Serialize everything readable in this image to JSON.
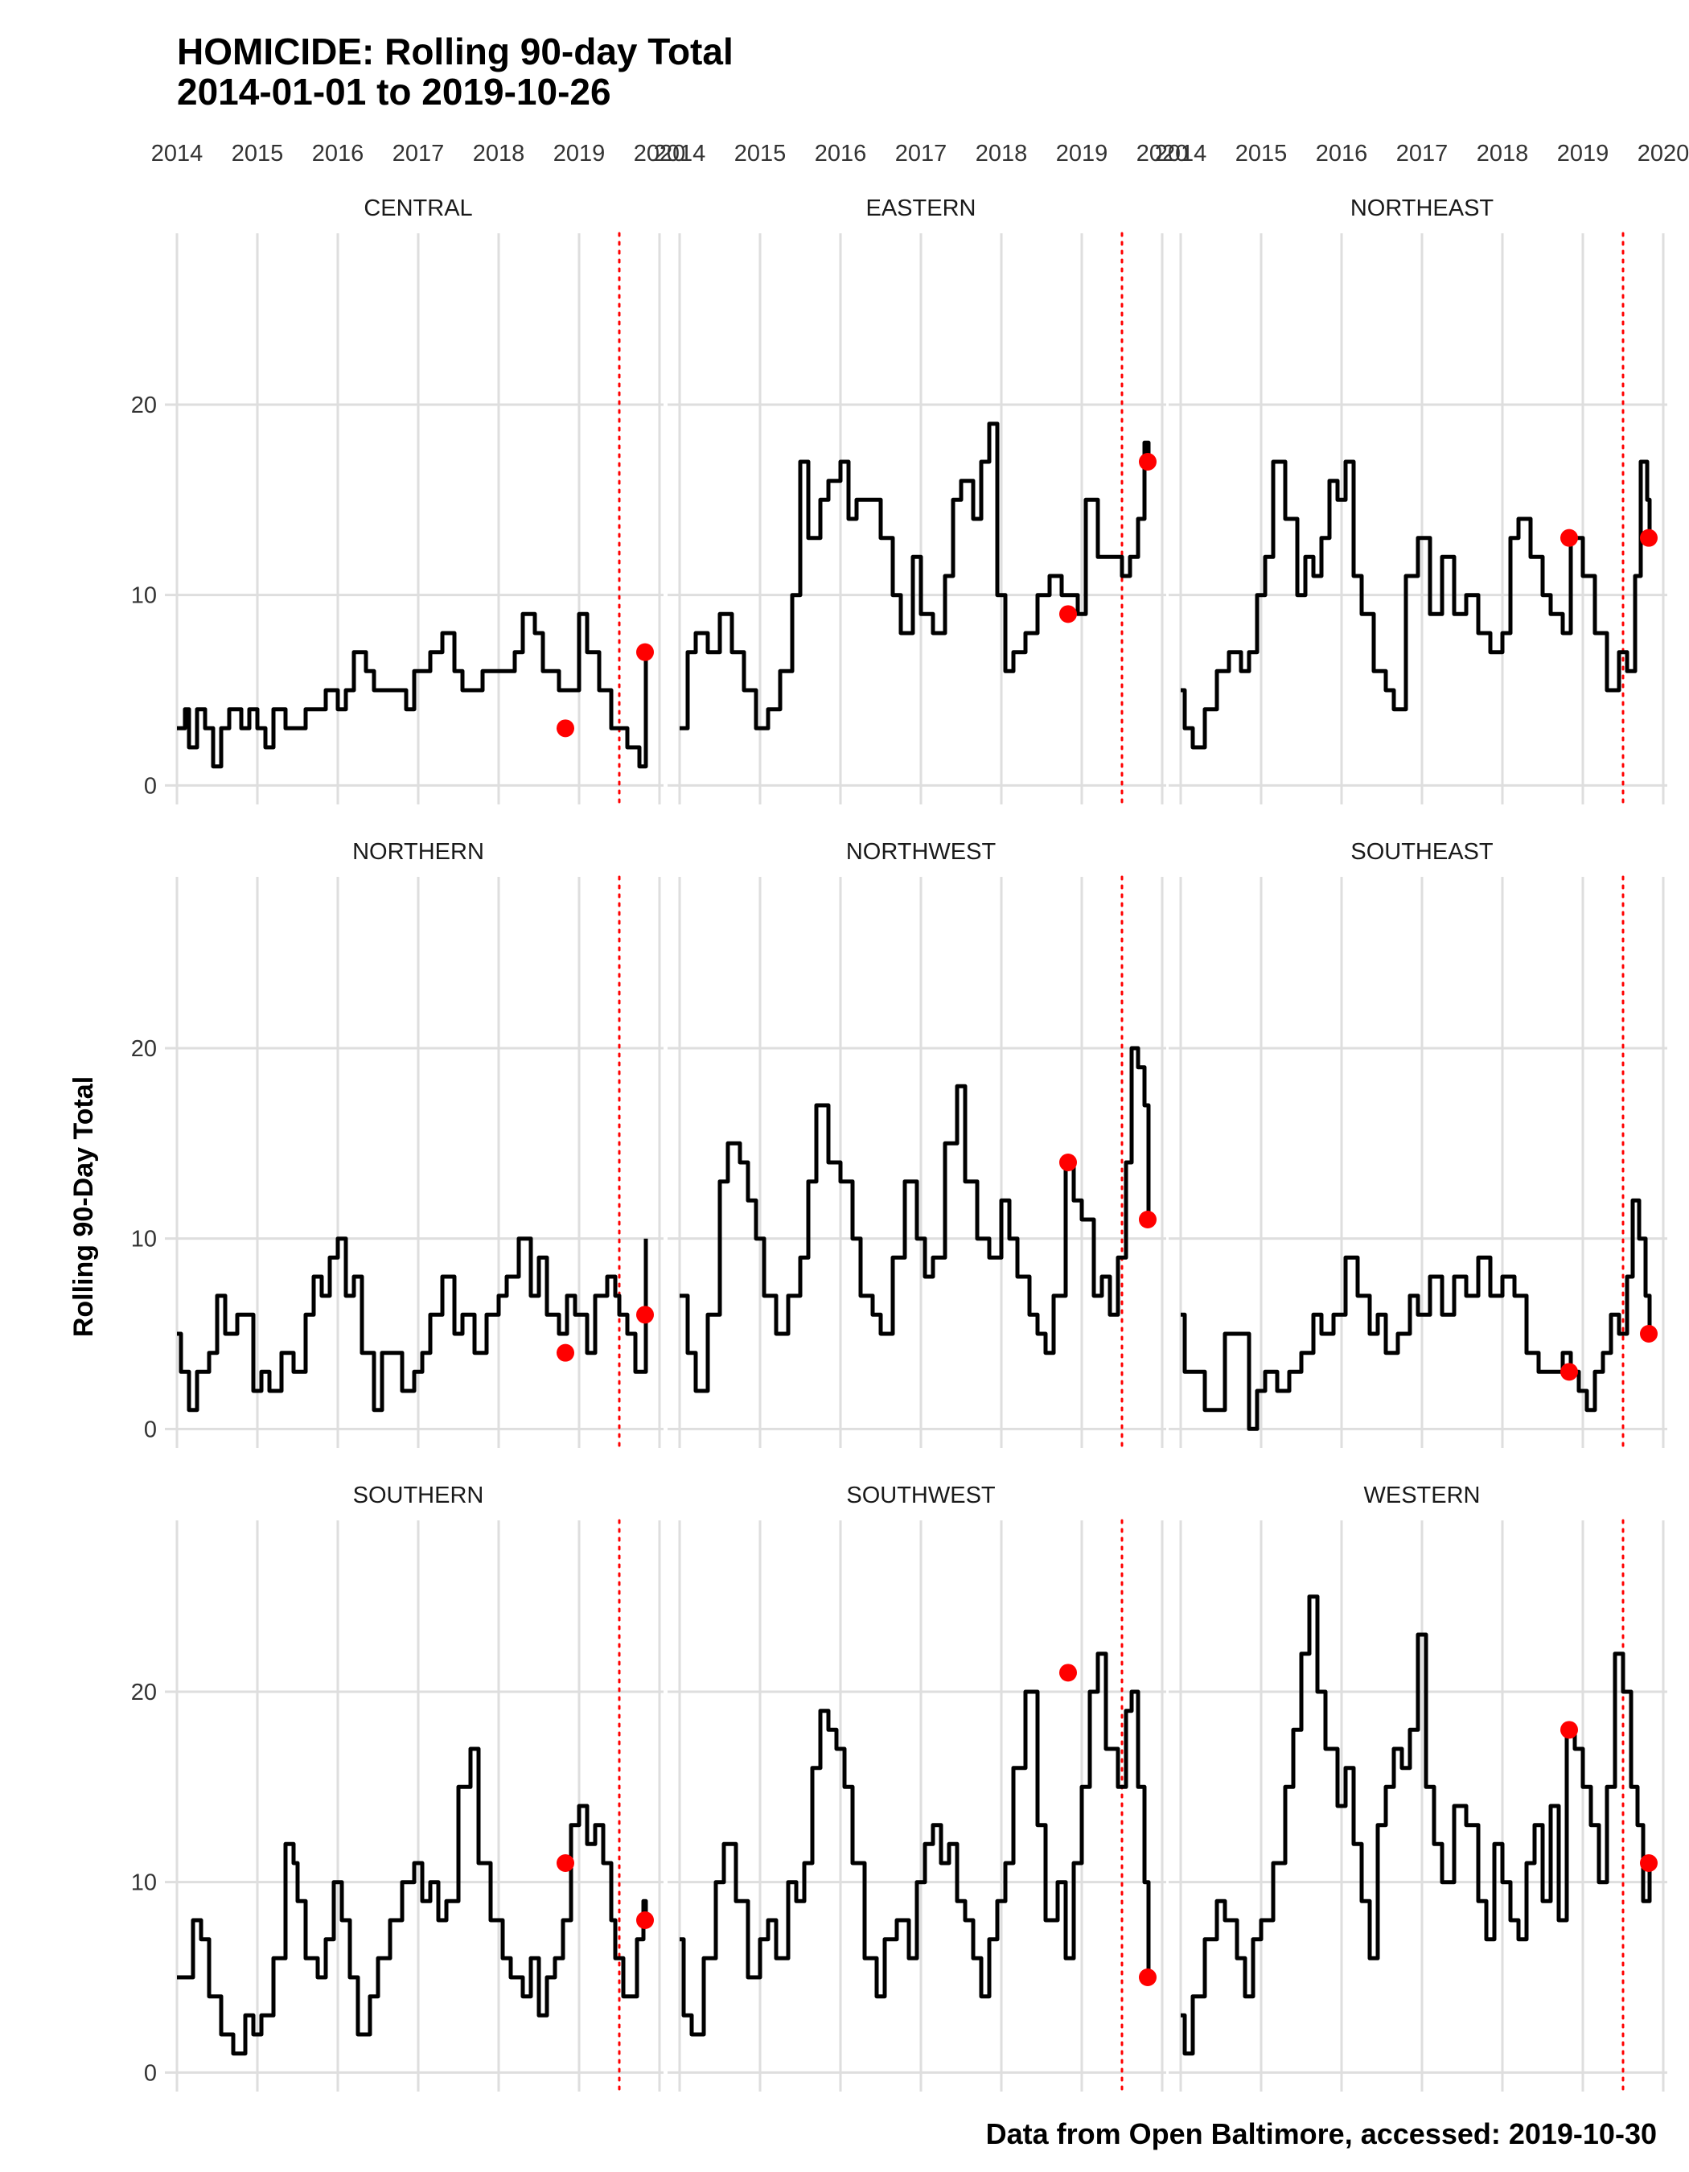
{
  "chart_data": {
    "type": "line",
    "title_line1": "HOMICIDE: Rolling 90-day Total",
    "title_line2": "2014-01-01 to 2019-10-26",
    "ylabel": "Rolling 90-Day Total",
    "caption": "Data from Open Baltimore, accessed: 2019-10-30",
    "x_ticks": [
      "2014",
      "2015",
      "2016",
      "2017",
      "2018",
      "2019",
      "2020"
    ],
    "y_ticks": [
      0,
      10,
      20
    ],
    "xlim": [
      2013.95,
      2020.05
    ],
    "ylim": [
      -1,
      29
    ],
    "grid": true,
    "reference_line": {
      "x": 2019.5,
      "color": "#ff0000",
      "style": "dotted"
    },
    "marker_color": "#ff0000",
    "line_color": "#000000",
    "panels": [
      {
        "name": "CENTRAL",
        "x": [
          2014.0,
          2014.1,
          2014.15,
          2014.25,
          2014.35,
          2014.45,
          2014.55,
          2014.65,
          2014.8,
          2014.9,
          2015.0,
          2015.1,
          2015.2,
          2015.35,
          2015.5,
          2015.6,
          2015.75,
          2015.85,
          2016.0,
          2016.1,
          2016.2,
          2016.35,
          2016.45,
          2016.6,
          2016.75,
          2016.85,
          2016.95,
          2017.05,
          2017.15,
          2017.3,
          2017.45,
          2017.55,
          2017.7,
          2017.8,
          2017.95,
          2018.1,
          2018.2,
          2018.3,
          2018.45,
          2018.55,
          2018.65,
          2018.75,
          2018.85,
          2019.0,
          2019.1,
          2019.25,
          2019.4,
          2019.5,
          2019.6,
          2019.75,
          2019.83
        ],
        "y": [
          3,
          4,
          2,
          4,
          3,
          1,
          3,
          4,
          3,
          4,
          3,
          2,
          4,
          3,
          3,
          4,
          4,
          5,
          4,
          5,
          7,
          6,
          5,
          5,
          5,
          4,
          6,
          6,
          7,
          8,
          6,
          5,
          5,
          6,
          6,
          6,
          7,
          9,
          8,
          6,
          6,
          5,
          5,
          9,
          7,
          5,
          3,
          3,
          2,
          1,
          7
        ],
        "marker1": {
          "x": 2018.83,
          "y": 3
        },
        "marker2": {
          "x": 2019.82,
          "y": 7
        }
      },
      {
        "name": "EASTERN",
        "x": [
          2014.0,
          2014.1,
          2014.2,
          2014.35,
          2014.5,
          2014.65,
          2014.8,
          2014.95,
          2015.1,
          2015.25,
          2015.4,
          2015.5,
          2015.6,
          2015.75,
          2015.85,
          2016.0,
          2016.1,
          2016.2,
          2016.35,
          2016.5,
          2016.65,
          2016.75,
          2016.9,
          2017.0,
          2017.15,
          2017.3,
          2017.4,
          2017.5,
          2017.65,
          2017.75,
          2017.85,
          2017.95,
          2018.05,
          2018.15,
          2018.3,
          2018.45,
          2018.6,
          2018.75,
          2018.85,
          2018.95,
          2019.05,
          2019.2,
          2019.35,
          2019.5,
          2019.6,
          2019.7,
          2019.78,
          2019.83
        ],
        "y": [
          3,
          7,
          8,
          7,
          9,
          7,
          5,
          3,
          4,
          6,
          10,
          17,
          13,
          15,
          16,
          17,
          14,
          15,
          15,
          13,
          10,
          8,
          12,
          9,
          8,
          11,
          15,
          16,
          14,
          17,
          19,
          10,
          6,
          7,
          8,
          10,
          11,
          10,
          10,
          9,
          15,
          12,
          12,
          11,
          12,
          14,
          18,
          17
        ],
        "marker1": {
          "x": 2018.83,
          "y": 9
        },
        "marker2": {
          "x": 2019.82,
          "y": 17
        }
      },
      {
        "name": "NORTHEAST",
        "x": [
          2014.0,
          2014.05,
          2014.15,
          2014.3,
          2014.45,
          2014.6,
          2014.75,
          2014.85,
          2014.95,
          2015.05,
          2015.15,
          2015.3,
          2015.45,
          2015.55,
          2015.65,
          2015.75,
          2015.85,
          2015.95,
          2016.05,
          2016.15,
          2016.25,
          2016.4,
          2016.55,
          2016.65,
          2016.8,
          2016.95,
          2017.1,
          2017.25,
          2017.4,
          2017.55,
          2017.7,
          2017.85,
          2018.0,
          2018.1,
          2018.2,
          2018.35,
          2018.5,
          2018.6,
          2018.75,
          2018.85,
          2019.0,
          2019.15,
          2019.3,
          2019.45,
          2019.55,
          2019.65,
          2019.72,
          2019.8,
          2019.83
        ],
        "y": [
          5,
          3,
          2,
          4,
          6,
          7,
          6,
          7,
          10,
          12,
          17,
          14,
          10,
          12,
          11,
          13,
          16,
          15,
          17,
          11,
          9,
          6,
          5,
          4,
          11,
          13,
          9,
          12,
          9,
          10,
          8,
          7,
          8,
          13,
          14,
          12,
          10,
          9,
          8,
          13,
          11,
          8,
          5,
          7,
          6,
          11,
          17,
          15,
          13
        ],
        "marker1": {
          "x": 2018.83,
          "y": 13
        },
        "marker2": {
          "x": 2019.82,
          "y": 13
        }
      },
      {
        "name": "NORTHERN",
        "x": [
          2014.0,
          2014.05,
          2014.15,
          2014.25,
          2014.4,
          2014.5,
          2014.6,
          2014.75,
          2014.95,
          2015.05,
          2015.15,
          2015.3,
          2015.45,
          2015.6,
          2015.7,
          2015.8,
          2015.9,
          2016.0,
          2016.1,
          2016.2,
          2016.3,
          2016.45,
          2016.55,
          2016.65,
          2016.8,
          2016.95,
          2017.05,
          2017.15,
          2017.3,
          2017.45,
          2017.55,
          2017.7,
          2017.85,
          2018.0,
          2018.1,
          2018.25,
          2018.4,
          2018.5,
          2018.6,
          2018.75,
          2018.85,
          2018.95,
          2019.1,
          2019.2,
          2019.35,
          2019.45,
          2019.5,
          2019.6,
          2019.7,
          2019.8,
          2019.83
        ],
        "y": [
          5,
          3,
          1,
          3,
          4,
          7,
          5,
          6,
          2,
          3,
          2,
          4,
          3,
          6,
          8,
          7,
          9,
          10,
          7,
          8,
          4,
          1,
          4,
          4,
          2,
          3,
          4,
          6,
          8,
          5,
          6,
          4,
          6,
          7,
          8,
          10,
          7,
          9,
          6,
          5,
          7,
          6,
          4,
          7,
          8,
          7,
          6,
          5,
          3,
          3,
          10
        ],
        "marker1": {
          "x": 2018.83,
          "y": 4
        },
        "marker2": {
          "x": 2019.82,
          "y": 6
        }
      },
      {
        "name": "NORTHWEST",
        "x": [
          2014.0,
          2014.1,
          2014.2,
          2014.35,
          2014.5,
          2014.6,
          2014.75,
          2014.85,
          2014.95,
          2015.05,
          2015.2,
          2015.35,
          2015.5,
          2015.6,
          2015.7,
          2015.85,
          2016.0,
          2016.15,
          2016.25,
          2016.4,
          2016.5,
          2016.65,
          2016.8,
          2016.95,
          2017.05,
          2017.15,
          2017.3,
          2017.45,
          2017.55,
          2017.7,
          2017.85,
          2018.0,
          2018.1,
          2018.2,
          2018.35,
          2018.45,
          2018.55,
          2018.65,
          2018.8,
          2018.9,
          2019.0,
          2019.15,
          2019.25,
          2019.35,
          2019.45,
          2019.55,
          2019.62,
          2019.7,
          2019.78,
          2019.83
        ],
        "y": [
          7,
          4,
          2,
          6,
          13,
          15,
          14,
          12,
          10,
          7,
          5,
          7,
          9,
          13,
          17,
          14,
          13,
          10,
          7,
          6,
          5,
          9,
          13,
          10,
          8,
          9,
          15,
          18,
          13,
          10,
          9,
          12,
          10,
          8,
          6,
          5,
          4,
          7,
          14,
          12,
          11,
          7,
          8,
          6,
          9,
          14,
          20,
          19,
          17,
          11
        ],
        "marker1": {
          "x": 2018.83,
          "y": 14
        },
        "marker2": {
          "x": 2019.82,
          "y": 11
        }
      },
      {
        "name": "SOUTHEAST",
        "x": [
          2014.0,
          2014.05,
          2014.15,
          2014.3,
          2014.45,
          2014.55,
          2014.7,
          2014.85,
          2014.95,
          2015.05,
          2015.2,
          2015.35,
          2015.5,
          2015.65,
          2015.75,
          2015.9,
          2016.05,
          2016.2,
          2016.35,
          2016.45,
          2016.55,
          2016.7,
          2016.85,
          2016.95,
          2017.1,
          2017.25,
          2017.4,
          2017.55,
          2017.7,
          2017.85,
          2018.0,
          2018.15,
          2018.3,
          2018.45,
          2018.6,
          2018.75,
          2018.85,
          2018.95,
          2019.05,
          2019.15,
          2019.25,
          2019.35,
          2019.45,
          2019.55,
          2019.62,
          2019.7,
          2019.78,
          2019.83
        ],
        "y": [
          6,
          3,
          3,
          1,
          1,
          5,
          5,
          0,
          2,
          3,
          2,
          3,
          4,
          6,
          5,
          6,
          9,
          7,
          5,
          6,
          4,
          5,
          7,
          6,
          8,
          6,
          8,
          7,
          9,
          7,
          8,
          7,
          4,
          3,
          3,
          4,
          3,
          2,
          1,
          3,
          4,
          6,
          5,
          8,
          12,
          10,
          7,
          5
        ],
        "marker1": {
          "x": 2018.83,
          "y": 3
        },
        "marker2": {
          "x": 2019.82,
          "y": 5
        }
      },
      {
        "name": "SOUTHERN",
        "x": [
          2014.0,
          2014.1,
          2014.2,
          2014.3,
          2014.4,
          2014.55,
          2014.7,
          2014.85,
          2014.95,
          2015.05,
          2015.2,
          2015.35,
          2015.45,
          2015.5,
          2015.6,
          2015.75,
          2015.85,
          2015.95,
          2016.05,
          2016.15,
          2016.25,
          2016.4,
          2016.5,
          2016.65,
          2016.8,
          2016.95,
          2017.05,
          2017.15,
          2017.25,
          2017.35,
          2017.5,
          2017.65,
          2017.75,
          2017.9,
          2018.05,
          2018.15,
          2018.3,
          2018.4,
          2018.5,
          2018.6,
          2018.7,
          2018.8,
          2018.9,
          2019.0,
          2019.1,
          2019.2,
          2019.3,
          2019.4,
          2019.45,
          2019.55,
          2019.65,
          2019.72,
          2019.8,
          2019.83
        ],
        "y": [
          5,
          5,
          8,
          7,
          4,
          2,
          1,
          3,
          2,
          3,
          6,
          12,
          11,
          9,
          6,
          5,
          7,
          10,
          8,
          5,
          2,
          4,
          6,
          8,
          10,
          11,
          9,
          10,
          8,
          9,
          15,
          17,
          11,
          8,
          6,
          5,
          4,
          6,
          3,
          5,
          6,
          8,
          13,
          14,
          12,
          13,
          11,
          8,
          6,
          4,
          4,
          7,
          9,
          8
        ],
        "marker1": {
          "x": 2018.83,
          "y": 11
        },
        "marker2": {
          "x": 2019.82,
          "y": 8
        }
      },
      {
        "name": "SOUTHWEST",
        "x": [
          2014.0,
          2014.05,
          2014.15,
          2014.3,
          2014.45,
          2014.55,
          2014.7,
          2014.85,
          2015.0,
          2015.1,
          2015.2,
          2015.35,
          2015.45,
          2015.55,
          2015.65,
          2015.75,
          2015.85,
          2015.95,
          2016.05,
          2016.15,
          2016.3,
          2016.45,
          2016.55,
          2016.7,
          2016.85,
          2016.95,
          2017.05,
          2017.15,
          2017.25,
          2017.35,
          2017.45,
          2017.55,
          2017.65,
          2017.75,
          2017.85,
          2017.95,
          2018.05,
          2018.15,
          2018.3,
          2018.45,
          2018.55,
          2018.7,
          2018.8,
          2018.9,
          2019.0,
          2019.1,
          2019.2,
          2019.3,
          2019.45,
          2019.55,
          2019.62,
          2019.7,
          2019.78,
          2019.83
        ],
        "y": [
          7,
          3,
          2,
          6,
          10,
          12,
          9,
          5,
          7,
          8,
          6,
          10,
          9,
          11,
          16,
          19,
          18,
          17,
          15,
          11,
          6,
          4,
          7,
          8,
          6,
          10,
          12,
          13,
          11,
          12,
          9,
          8,
          6,
          4,
          7,
          9,
          11,
          16,
          20,
          13,
          8,
          10,
          6,
          11,
          15,
          20,
          22,
          17,
          15,
          19,
          20,
          15,
          10,
          5
        ],
        "marker1": {
          "x": 2018.83,
          "y": 21
        },
        "marker2": {
          "x": 2019.82,
          "y": 5
        }
      },
      {
        "name": "WESTERN",
        "x": [
          2014.0,
          2014.05,
          2014.15,
          2014.3,
          2014.45,
          2014.55,
          2014.7,
          2014.8,
          2014.9,
          2015.0,
          2015.15,
          2015.3,
          2015.4,
          2015.5,
          2015.6,
          2015.7,
          2015.8,
          2015.95,
          2016.05,
          2016.15,
          2016.25,
          2016.35,
          2016.45,
          2016.55,
          2016.65,
          2016.75,
          2016.85,
          2016.95,
          2017.05,
          2017.15,
          2017.25,
          2017.4,
          2017.55,
          2017.7,
          2017.8,
          2017.9,
          2018.0,
          2018.1,
          2018.2,
          2018.3,
          2018.4,
          2018.5,
          2018.6,
          2018.7,
          2018.8,
          2018.9,
          2019.0,
          2019.1,
          2019.2,
          2019.3,
          2019.4,
          2019.5,
          2019.6,
          2019.68,
          2019.75,
          2019.83
        ],
        "y": [
          3,
          1,
          4,
          7,
          9,
          8,
          6,
          4,
          7,
          8,
          11,
          15,
          18,
          22,
          25,
          20,
          17,
          14,
          16,
          12,
          9,
          6,
          13,
          15,
          17,
          16,
          18,
          23,
          15,
          12,
          10,
          14,
          13,
          9,
          7,
          12,
          10,
          8,
          7,
          11,
          13,
          9,
          14,
          8,
          18,
          17,
          15,
          13,
          10,
          15,
          22,
          20,
          15,
          13,
          9,
          11
        ],
        "marker1": {
          "x": 2018.83,
          "y": 18
        },
        "marker2": {
          "x": 2019.82,
          "y": 11
        }
      }
    ]
  }
}
